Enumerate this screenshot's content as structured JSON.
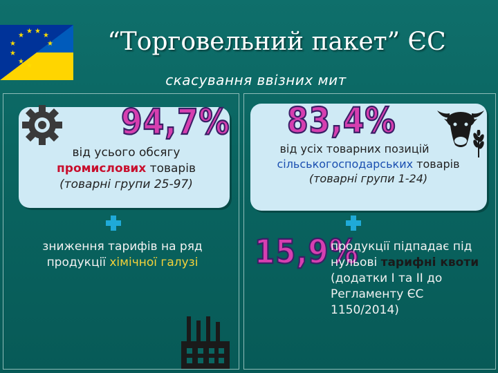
{
  "header": {
    "title": "“Торговельний пакет” ЄС",
    "subtitle": "скасування ввізних мит"
  },
  "left_card": {
    "percent": "94,7%",
    "line1": "від усього обсягу",
    "line2_a": "промислових",
    "line2_b": " товарів",
    "line3": "(товарні групи 25-97)"
  },
  "right_card": {
    "percent": "83,4%",
    "line1": "від усіх товарних позицій",
    "line2_a": "сільськогосподарських",
    "line2_b": " товарів",
    "line3": "(товарні групи 1-24)"
  },
  "left_lower": {
    "line1": "зниження тарифів на ряд",
    "line2_a": "продукції ",
    "line2_b": "хімічної галузі"
  },
  "right_lower": {
    "percent": "15,9%",
    "line1": "продукції підпадає під",
    "line2_a": "нульові ",
    "line2_b": "тарифні квоти",
    "line3": "(додатки І та ІІ до",
    "line4": "Регламенту ЄС",
    "line5": "1150/2014)"
  },
  "colors": {
    "background": "#0a6561",
    "bubble": "#cfeaf5",
    "percent_fill": "#d63fb0",
    "accent_red": "#c8102e",
    "accent_gold": "#f3d23a",
    "plus": "#1faad8"
  },
  "icons": [
    "eu-ukraine-flag-icon",
    "gear-icon",
    "cow-icon",
    "wheat-icon",
    "factory-icon",
    "plus-icon"
  ]
}
